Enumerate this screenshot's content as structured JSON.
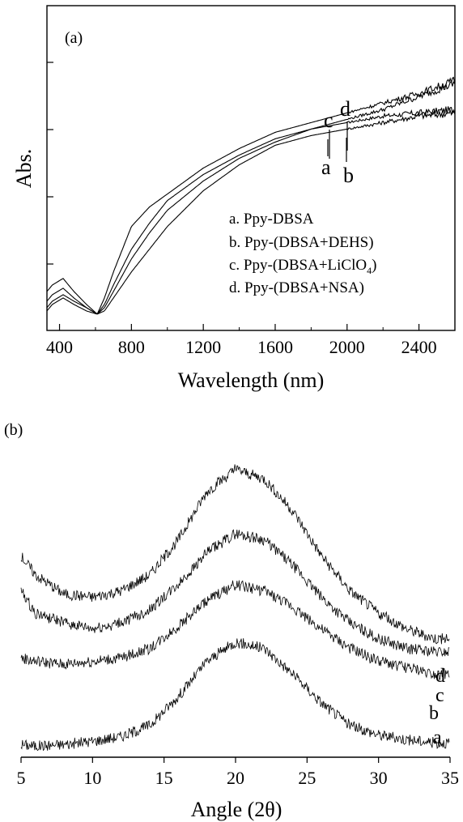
{
  "chart_data": [
    {
      "type": "line",
      "panel_label": "(a)",
      "xlabel": "Wavelength (nm)",
      "ylabel": "Abs.",
      "xlim": [
        330,
        2600
      ],
      "ylim": [
        0,
        1
      ],
      "xticks": [
        400,
        800,
        1200,
        1600,
        2000,
        2400
      ],
      "yticks_labeled": false,
      "grid": false,
      "legend": {
        "placement": "bottom-right",
        "entries": [
          {
            "prefix": "a. Ppy-(DBSA",
            "text": "a. Ppy-DBSA"
          },
          {
            "text": "b. Ppy-(DBSA+DEHS)"
          },
          {
            "text": "c. Ppy-(DBSA+LiClO",
            "sub": "4",
            "suffix": ")"
          },
          {
            "text": "d. Ppy-(DBSA+NSA)"
          }
        ]
      },
      "series": [
        {
          "name": "a",
          "x": [
            330,
            360,
            420,
            480,
            550,
            610,
            650,
            700,
            800,
            900,
            1000,
            1200,
            1400,
            1600,
            1800,
            2000,
            2200,
            2400,
            2600
          ],
          "y": [
            0.09,
            0.11,
            0.13,
            0.1,
            0.07,
            0.05,
            0.07,
            0.12,
            0.22,
            0.3,
            0.37,
            0.46,
            0.53,
            0.58,
            0.62,
            0.64,
            0.66,
            0.67,
            0.68
          ]
        },
        {
          "name": "b",
          "x": [
            330,
            360,
            420,
            480,
            550,
            610,
            650,
            700,
            800,
            900,
            1000,
            1200,
            1400,
            1600,
            1800,
            2000,
            2200,
            2400,
            2600
          ],
          "y": [
            0.06,
            0.08,
            0.1,
            0.08,
            0.06,
            0.05,
            0.06,
            0.1,
            0.18,
            0.25,
            0.32,
            0.43,
            0.51,
            0.57,
            0.6,
            0.62,
            0.64,
            0.66,
            0.67
          ]
        },
        {
          "name": "c",
          "x": [
            330,
            360,
            420,
            480,
            550,
            610,
            650,
            700,
            800,
            900,
            1000,
            1200,
            1400,
            1600,
            1800,
            2000,
            2200,
            2400,
            2600
          ],
          "y": [
            0.07,
            0.09,
            0.11,
            0.09,
            0.07,
            0.05,
            0.08,
            0.14,
            0.25,
            0.33,
            0.4,
            0.48,
            0.54,
            0.59,
            0.62,
            0.65,
            0.68,
            0.72,
            0.76
          ]
        },
        {
          "name": "d",
          "x": [
            330,
            360,
            420,
            480,
            550,
            610,
            650,
            700,
            800,
            900,
            1000,
            1200,
            1400,
            1600,
            1800,
            2000,
            2200,
            2400,
            2600
          ],
          "y": [
            0.12,
            0.14,
            0.16,
            0.12,
            0.08,
            0.05,
            0.1,
            0.18,
            0.32,
            0.38,
            0.42,
            0.5,
            0.56,
            0.61,
            0.64,
            0.67,
            0.7,
            0.73,
            0.77
          ]
        }
      ],
      "curve_labels_top": [
        "c",
        "d"
      ],
      "curve_labels_bottom": [
        "a",
        "b"
      ]
    },
    {
      "type": "line",
      "panel_label": "(b)",
      "xlabel": "Angle (2θ)",
      "ylabel": "",
      "xlim": [
        5,
        35
      ],
      "ylim": [
        0,
        1
      ],
      "xticks": [
        5,
        10,
        15,
        20,
        25,
        30,
        35
      ],
      "yticks_labeled": false,
      "grid": false,
      "series": [
        {
          "name": "a",
          "x": [
            5,
            6,
            8,
            10,
            12,
            14,
            16,
            18,
            20,
            22,
            24,
            26,
            28,
            30,
            32,
            34,
            35
          ],
          "y": [
            0.04,
            0.035,
            0.04,
            0.05,
            0.065,
            0.1,
            0.19,
            0.3,
            0.36,
            0.34,
            0.26,
            0.17,
            0.1,
            0.07,
            0.055,
            0.045,
            0.045
          ]
        },
        {
          "name": "b",
          "x": [
            5,
            6,
            8,
            10,
            12,
            14,
            16,
            18,
            20,
            22,
            24,
            26,
            28,
            30,
            32,
            34,
            35
          ],
          "y": [
            0.31,
            0.3,
            0.29,
            0.3,
            0.31,
            0.34,
            0.41,
            0.49,
            0.54,
            0.52,
            0.47,
            0.4,
            0.34,
            0.3,
            0.28,
            0.26,
            0.26
          ]
        },
        {
          "name": "c",
          "x": [
            5,
            6,
            8,
            10,
            12,
            14,
            16,
            18,
            20,
            22,
            24,
            26,
            28,
            30,
            32,
            34,
            35
          ],
          "y": [
            0.52,
            0.45,
            0.42,
            0.4,
            0.42,
            0.46,
            0.54,
            0.64,
            0.7,
            0.68,
            0.6,
            0.5,
            0.42,
            0.37,
            0.34,
            0.33,
            0.33
          ]
        },
        {
          "name": "d",
          "x": [
            5,
            6,
            8,
            10,
            12,
            14,
            16,
            18,
            20,
            22,
            24,
            26,
            28,
            30,
            32,
            34,
            35
          ],
          "y": [
            0.63,
            0.57,
            0.51,
            0.5,
            0.52,
            0.57,
            0.68,
            0.83,
            0.9,
            0.87,
            0.77,
            0.63,
            0.52,
            0.45,
            0.4,
            0.37,
            0.37
          ]
        }
      ]
    }
  ]
}
